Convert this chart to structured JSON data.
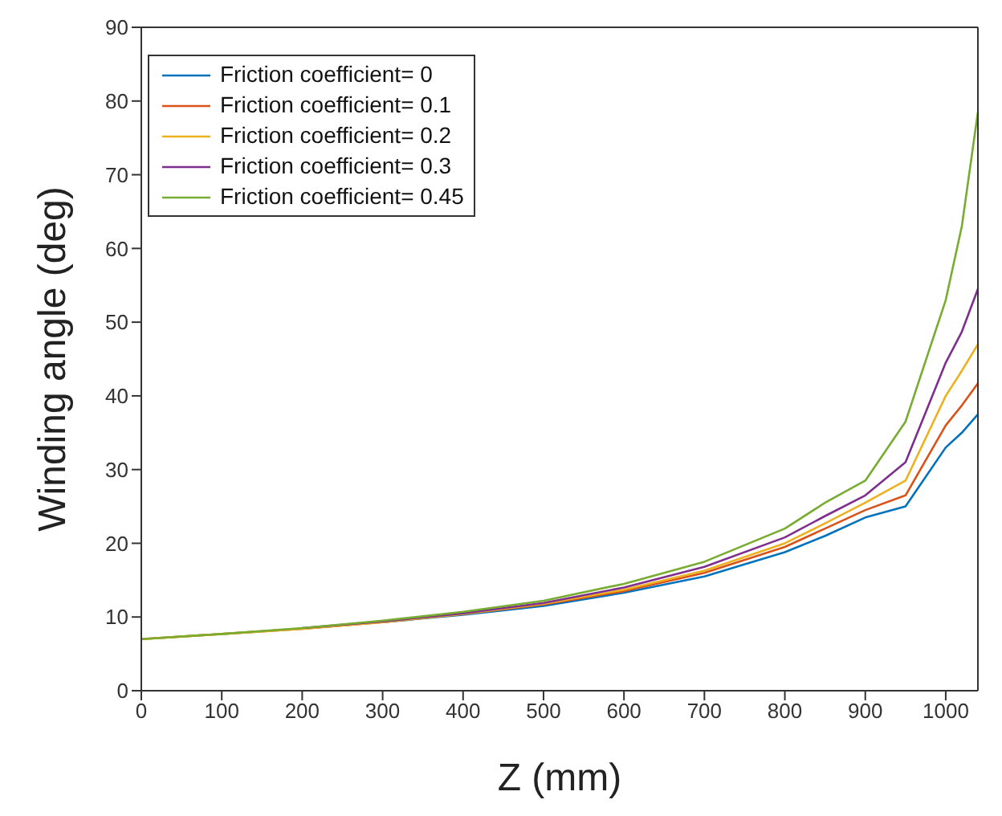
{
  "chart_data": {
    "type": "line",
    "xlabel": "Z (mm)",
    "ylabel": "Winding angle (deg)",
    "x": [
      0,
      100,
      200,
      300,
      400,
      500,
      600,
      700,
      800,
      850,
      900,
      950,
      1000,
      1020,
      1040
    ],
    "xlim": [
      0,
      1040
    ],
    "xticks": [
      0,
      100,
      200,
      300,
      400,
      500,
      600,
      700,
      800,
      900,
      1000
    ],
    "ylim": [
      0,
      90
    ],
    "yticks": [
      0,
      10,
      20,
      30,
      40,
      50,
      60,
      70,
      80,
      90
    ],
    "grid": false,
    "legend": "top left",
    "marker": "none",
    "line_style": "solid",
    "series": [
      {
        "name": "Friction coefficient= 0",
        "color": "#0072bd",
        "values": [
          null,
          null,
          null,
          9.3,
          10.3,
          11.5,
          13.3,
          15.5,
          18.8,
          21,
          23.5,
          25,
          33,
          35,
          37.5
        ]
      },
      {
        "name": "Friction coefficient= 0.1",
        "color": "#d95319",
        "values": [
          7,
          7.7,
          8.4,
          9.3,
          10.4,
          11.7,
          13.5,
          16,
          19.5,
          22,
          24.5,
          26.5,
          36,
          38.7,
          41.7
        ]
      },
      {
        "name": "Friction coefficient= 0.2",
        "color": "#edb120",
        "values": [
          7,
          7.7,
          8.4,
          9.3,
          10.4,
          11.8,
          13.7,
          16.3,
          20,
          22.7,
          25.5,
          28.5,
          40,
          43.4,
          47
        ]
      },
      {
        "name": "Friction coefficient= 0.3",
        "color": "#7e2f8e",
        "values": [
          null,
          null,
          8.5,
          9.4,
          10.5,
          11.9,
          14,
          16.8,
          20.8,
          23.7,
          26.5,
          31,
          44.5,
          48.7,
          54.5
        ]
      },
      {
        "name": "Friction coefficient= 0.45",
        "color": "#77ac30",
        "values": [
          7,
          7.7,
          8.5,
          9.5,
          10.7,
          12.2,
          14.5,
          17.5,
          22,
          25.5,
          28.5,
          36.5,
          53,
          63,
          78.5
        ]
      }
    ]
  }
}
